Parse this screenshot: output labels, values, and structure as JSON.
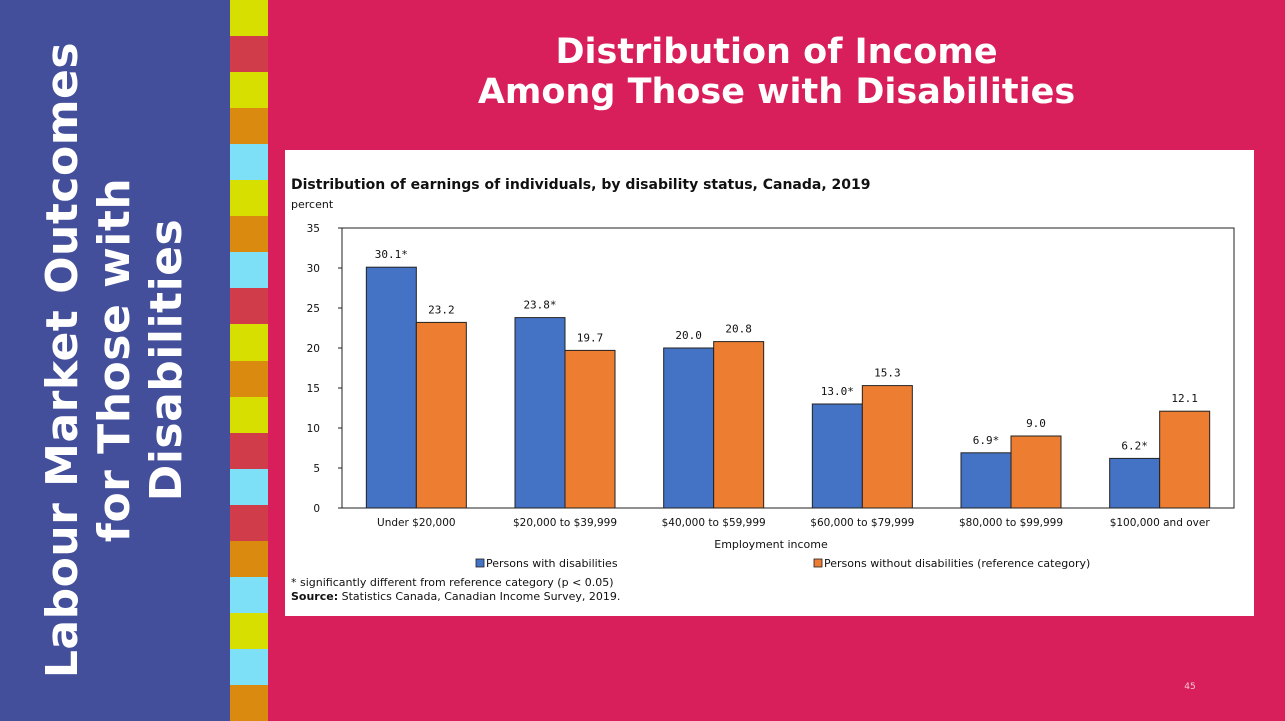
{
  "sidebar": {
    "title": "Labour Market Outcomes for Those with Disabilities"
  },
  "stripe_colors": [
    "#d7df01",
    "#d13c4b",
    "#d7df01",
    "#d98a0f",
    "#7ee0f7",
    "#d7df01",
    "#d98a0f",
    "#7ee0f7",
    "#d13c4b",
    "#d7df01",
    "#d98a0f",
    "#d7df01",
    "#d13c4b",
    "#7ee0f7",
    "#d13c4b",
    "#d98a0f",
    "#7ee0f7",
    "#d7df01",
    "#7ee0f7",
    "#d98a0f"
  ],
  "main_title": {
    "line1": "Distribution of Income",
    "line2": "Among Those with Disabilities"
  },
  "page_number": "45",
  "chart_data": {
    "type": "bar",
    "title": "Distribution of earnings of individuals, by disability status, Canada, 2019",
    "ylabel": "percent",
    "xlabel": "Employment income",
    "ylim": [
      0,
      35
    ],
    "yticks": [
      0,
      5,
      10,
      15,
      20,
      25,
      30,
      35
    ],
    "categories": [
      "Under $20,000",
      "$20,000 to $39,999",
      "$40,000 to $59,999",
      "$60,000 to $79,999",
      "$80,000 to $99,999",
      "$100,000 and over"
    ],
    "series": [
      {
        "name": "Persons with disabilities",
        "color": "#4472c4",
        "values": [
          30.1,
          23.8,
          20.0,
          13.0,
          6.9,
          6.2
        ],
        "labels": [
          "30.1*",
          "23.8*",
          "20.0",
          "13.0*",
          "6.9*",
          "6.2*"
        ]
      },
      {
        "name": "Persons without disabilities (reference category)",
        "color": "#ed7d31",
        "values": [
          23.2,
          19.7,
          20.8,
          15.3,
          9.0,
          12.1
        ],
        "labels": [
          "23.2",
          "19.7",
          "20.8",
          "15.3",
          "9.0",
          "12.1"
        ]
      }
    ],
    "legend_position": "bottom",
    "grid": false,
    "footnote": "* significantly different from reference category (p < 0.05)",
    "source_label": "Source:",
    "source_text": " Statistics Canada, Canadian Income Survey, 2019."
  }
}
